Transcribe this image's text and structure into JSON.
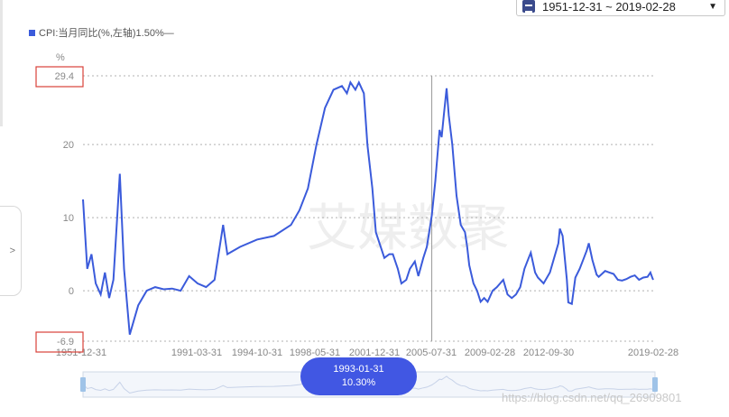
{
  "date_range": {
    "label": "1951-12-31 ~ 2019-02-28",
    "icon": "calendar-icon"
  },
  "legend": {
    "label": "CPI:当月同比(%,左轴)1.50%—",
    "color": "#3b5bdb"
  },
  "side_tab": {
    "label": ">"
  },
  "tooltip": {
    "date": "1993-01-31",
    "value": "10.30%"
  },
  "watermark": {
    "brand": "艾媒数聚",
    "url": "https://blog.csdn.net/qq_26909801"
  },
  "colors": {
    "line": "#3b5bdb",
    "grid": "#b0b0b0",
    "axis_text": "#888888",
    "highlight_box": "#d9413a",
    "tooltip_bg": "#4157e3"
  },
  "chart_data": {
    "type": "line",
    "unit_label": "%",
    "ylim": [
      -6.9,
      29.4
    ],
    "y_ticks": [
      "29.4",
      "20",
      "10",
      "0",
      "-6.9"
    ],
    "x_ticks": [
      "1951-12-31",
      "1991-03-31",
      "1994-10-31",
      "1998-05-31",
      "2001-12-31",
      "2005-07-31",
      "2009-02-28",
      "2012-09-30",
      "2019-02-28"
    ],
    "highlighted_y_ticks": [
      "29.4",
      "-6.9"
    ],
    "cursor_date": "1993-01-31",
    "series": [
      {
        "name": "CPI:当月同比",
        "points": [
          [
            "1951-12",
            12.5
          ],
          [
            "1952-06",
            3.0
          ],
          [
            "1952-12",
            5.0
          ],
          [
            "1953-06",
            1.0
          ],
          [
            "1954-01",
            -0.5
          ],
          [
            "1954-07",
            2.5
          ],
          [
            "1955-01",
            -1.0
          ],
          [
            "1955-07",
            1.5
          ],
          [
            "1956-04",
            16.0
          ],
          [
            "1956-10",
            3.0
          ],
          [
            "1957-06",
            -6.0
          ],
          [
            "1958-06",
            -2.0
          ],
          [
            "1959-06",
            0.0
          ],
          [
            "1960-06",
            0.5
          ],
          [
            "1961-06",
            0.2
          ],
          [
            "1962-06",
            0.3
          ],
          [
            "1963-06",
            0.0
          ],
          [
            "1964-06",
            2.0
          ],
          [
            "1965-06",
            1.0
          ],
          [
            "1966-06",
            0.5
          ],
          [
            "1967-06",
            1.5
          ],
          [
            "1968-06",
            9.0
          ],
          [
            "1968-12",
            5.0
          ],
          [
            "1970-06",
            6.0
          ],
          [
            "1972-06",
            7.0
          ],
          [
            "1974-06",
            7.5
          ],
          [
            "1976-06",
            9.0
          ],
          [
            "1977-06",
            11.0
          ],
          [
            "1978-06",
            14.0
          ],
          [
            "1979-06",
            20.0
          ],
          [
            "1980-06",
            25.0
          ],
          [
            "1981-06",
            27.5
          ],
          [
            "1982-06",
            28.0
          ],
          [
            "1983-01",
            27.0
          ],
          [
            "1983-06",
            28.5
          ],
          [
            "1984-01",
            27.5
          ],
          [
            "1984-06",
            28.5
          ],
          [
            "1985-01",
            27.0
          ],
          [
            "1985-06",
            20.0
          ],
          [
            "1986-01",
            14.0
          ],
          [
            "1986-06",
            8.0
          ],
          [
            "1987-06",
            4.5
          ],
          [
            "1988-01",
            5.0
          ],
          [
            "1988-06",
            5.0
          ],
          [
            "1989-01",
            3.0
          ],
          [
            "1989-06",
            1.0
          ],
          [
            "1990-01",
            1.5
          ],
          [
            "1990-06",
            3.0
          ],
          [
            "1991-01",
            4.0
          ],
          [
            "1991-06",
            2.0
          ],
          [
            "1992-01",
            4.5
          ],
          [
            "1992-06",
            6.0
          ],
          [
            "1993-01",
            10.3
          ],
          [
            "1993-06",
            15.0
          ],
          [
            "1993-12",
            22.0
          ],
          [
            "1994-03",
            21.0
          ],
          [
            "1994-06",
            24.0
          ],
          [
            "1994-10",
            27.7
          ],
          [
            "1995-01",
            24.0
          ],
          [
            "1995-06",
            20.0
          ],
          [
            "1995-12",
            13.0
          ],
          [
            "1996-06",
            9.0
          ],
          [
            "1996-12",
            8.0
          ],
          [
            "1997-03",
            6.0
          ],
          [
            "1997-06",
            3.5
          ],
          [
            "1997-12",
            1.0
          ],
          [
            "1998-05",
            0.0
          ],
          [
            "1998-10",
            -1.5
          ],
          [
            "1999-03",
            -1.0
          ],
          [
            "1999-08",
            -1.5
          ],
          [
            "2000-03",
            0.0
          ],
          [
            "2000-09",
            0.5
          ],
          [
            "2001-06",
            1.5
          ],
          [
            "2001-12",
            -0.5
          ],
          [
            "2002-06",
            -1.0
          ],
          [
            "2002-12",
            -0.5
          ],
          [
            "2003-06",
            0.5
          ],
          [
            "2003-12",
            3.0
          ],
          [
            "2004-06",
            4.5
          ],
          [
            "2004-09",
            5.2
          ],
          [
            "2005-03",
            2.5
          ],
          [
            "2005-07",
            1.8
          ],
          [
            "2006-03",
            1.0
          ],
          [
            "2006-12",
            2.5
          ],
          [
            "2007-06",
            4.5
          ],
          [
            "2007-12",
            6.5
          ],
          [
            "2008-02",
            8.5
          ],
          [
            "2008-06",
            7.5
          ],
          [
            "2008-12",
            1.5
          ],
          [
            "2009-02",
            -1.6
          ],
          [
            "2009-07",
            -1.8
          ],
          [
            "2009-12",
            1.8
          ],
          [
            "2010-06",
            3.0
          ],
          [
            "2010-12",
            4.5
          ],
          [
            "2011-04",
            5.5
          ],
          [
            "2011-07",
            6.5
          ],
          [
            "2011-12",
            4.2
          ],
          [
            "2012-06",
            2.2
          ],
          [
            "2012-09",
            1.9
          ],
          [
            "2013-06",
            2.7
          ],
          [
            "2013-12",
            2.5
          ],
          [
            "2014-06",
            2.3
          ],
          [
            "2014-12",
            1.5
          ],
          [
            "2015-06",
            1.4
          ],
          [
            "2015-12",
            1.6
          ],
          [
            "2016-06",
            1.9
          ],
          [
            "2016-12",
            2.1
          ],
          [
            "2017-06",
            1.5
          ],
          [
            "2017-12",
            1.8
          ],
          [
            "2018-06",
            1.9
          ],
          [
            "2018-10",
            2.5
          ],
          [
            "2019-01",
            1.7
          ],
          [
            "2019-02",
            1.5
          ]
        ]
      }
    ]
  }
}
